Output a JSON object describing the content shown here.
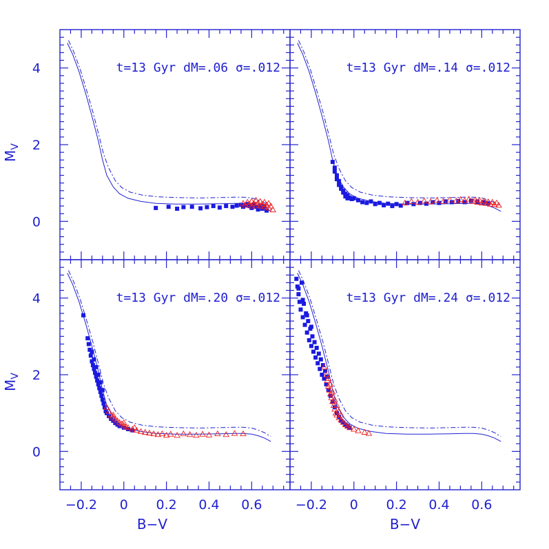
{
  "chart_data": {
    "type": "scatter",
    "layout": "2x2 panels",
    "xlabel": "B−V",
    "ylabel": "M",
    "ylabel_sub": "V",
    "xlim": [
      -0.3,
      0.78
    ],
    "ylim": [
      5.0,
      -1.0
    ],
    "y_inverted": true,
    "xticks": [
      -0.2,
      0,
      0.2,
      0.4,
      0.6
    ],
    "xtick_labels": [
      "−0.2",
      "0",
      "0.2",
      "0.4",
      "0.6"
    ],
    "yticks": [
      0,
      2,
      4
    ],
    "ytick_labels": [
      "0",
      "2",
      "4"
    ],
    "colors": {
      "axes": "#2020d0",
      "squares": "#1a1ae0",
      "triangles": "#ee2020"
    },
    "models": {
      "solid": [
        [
          -0.265,
          4.65
        ],
        [
          -0.24,
          4.35
        ],
        [
          -0.21,
          3.9
        ],
        [
          -0.18,
          3.35
        ],
        [
          -0.15,
          2.75
        ],
        [
          -0.12,
          2.1
        ],
        [
          -0.1,
          1.6
        ],
        [
          -0.08,
          1.2
        ],
        [
          -0.05,
          0.9
        ],
        [
          -0.02,
          0.72
        ],
        [
          0.02,
          0.6
        ],
        [
          0.08,
          0.52
        ],
        [
          0.15,
          0.47
        ],
        [
          0.25,
          0.45
        ],
        [
          0.35,
          0.45
        ],
        [
          0.45,
          0.46
        ],
        [
          0.52,
          0.47
        ],
        [
          0.56,
          0.47
        ],
        [
          0.6,
          0.45
        ],
        [
          0.63,
          0.41
        ],
        [
          0.66,
          0.35
        ],
        [
          0.68,
          0.29
        ],
        [
          0.69,
          0.26
        ]
      ],
      "dashdot": [
        [
          -0.26,
          4.72
        ],
        [
          -0.235,
          4.42
        ],
        [
          -0.205,
          3.97
        ],
        [
          -0.175,
          3.42
        ],
        [
          -0.145,
          2.85
        ],
        [
          -0.115,
          2.2
        ],
        [
          -0.095,
          1.75
        ],
        [
          -0.07,
          1.38
        ],
        [
          -0.04,
          1.06
        ],
        [
          -0.01,
          0.88
        ],
        [
          0.03,
          0.76
        ],
        [
          0.09,
          0.68
        ],
        [
          0.16,
          0.64
        ],
        [
          0.25,
          0.62
        ],
        [
          0.35,
          0.61
        ],
        [
          0.45,
          0.62
        ],
        [
          0.52,
          0.63
        ],
        [
          0.56,
          0.63
        ],
        [
          0.6,
          0.61
        ],
        [
          0.63,
          0.56
        ],
        [
          0.66,
          0.49
        ],
        [
          0.68,
          0.42
        ],
        [
          0.69,
          0.39
        ]
      ]
    },
    "panels": [
      {
        "annotation": "t=13 Gyr dM=.06 σ=.012",
        "squares": [
          [
            0.15,
            0.35
          ],
          [
            0.21,
            0.38
          ],
          [
            0.25,
            0.33
          ],
          [
            0.28,
            0.37
          ],
          [
            0.32,
            0.38
          ],
          [
            0.36,
            0.34
          ],
          [
            0.39,
            0.37
          ],
          [
            0.42,
            0.4
          ],
          [
            0.45,
            0.36
          ],
          [
            0.48,
            0.4
          ],
          [
            0.51,
            0.38
          ],
          [
            0.53,
            0.41
          ],
          [
            0.55,
            0.43
          ],
          [
            0.56,
            0.38
          ],
          [
            0.57,
            0.42
          ],
          [
            0.58,
            0.45
          ],
          [
            0.59,
            0.4
          ],
          [
            0.6,
            0.35
          ],
          [
            0.61,
            0.44
          ],
          [
            0.62,
            0.38
          ],
          [
            0.63,
            0.31
          ],
          [
            0.64,
            0.42
          ],
          [
            0.65,
            0.33
          ],
          [
            0.66,
            0.4
          ],
          [
            0.67,
            0.28
          ]
        ],
        "triangles": [
          [
            0.56,
            0.47
          ],
          [
            0.57,
            0.42
          ],
          [
            0.58,
            0.5
          ],
          [
            0.59,
            0.45
          ],
          [
            0.6,
            0.4
          ],
          [
            0.6,
            0.52
          ],
          [
            0.61,
            0.47
          ],
          [
            0.62,
            0.42
          ],
          [
            0.62,
            0.55
          ],
          [
            0.63,
            0.48
          ],
          [
            0.64,
            0.4
          ],
          [
            0.64,
            0.52
          ],
          [
            0.65,
            0.45
          ],
          [
            0.66,
            0.38
          ],
          [
            0.66,
            0.5
          ],
          [
            0.67,
            0.43
          ],
          [
            0.68,
            0.35
          ],
          [
            0.68,
            0.47
          ],
          [
            0.69,
            0.4
          ],
          [
            0.7,
            0.3
          ]
        ]
      },
      {
        "annotation": "t=13 Gyr dM=.14 σ=.012",
        "squares": [
          [
            -0.1,
            1.55
          ],
          [
            -0.09,
            1.4
          ],
          [
            -0.09,
            1.3
          ],
          [
            -0.08,
            1.2
          ],
          [
            -0.08,
            1.1
          ],
          [
            -0.07,
            1.05
          ],
          [
            -0.07,
            0.95
          ],
          [
            -0.06,
            0.9
          ],
          [
            -0.06,
            0.85
          ],
          [
            -0.05,
            0.8
          ],
          [
            -0.05,
            0.75
          ],
          [
            -0.04,
            0.72
          ],
          [
            -0.04,
            0.65
          ],
          [
            -0.03,
            0.68
          ],
          [
            -0.03,
            0.6
          ],
          [
            -0.02,
            0.62
          ],
          [
            -0.01,
            0.58
          ],
          [
            0.0,
            0.6
          ],
          [
            0.02,
            0.55
          ],
          [
            0.04,
            0.5
          ],
          [
            0.06,
            0.48
          ],
          [
            0.08,
            0.52
          ],
          [
            0.1,
            0.45
          ],
          [
            0.12,
            0.48
          ],
          [
            0.14,
            0.42
          ],
          [
            0.16,
            0.46
          ],
          [
            0.18,
            0.4
          ],
          [
            0.2,
            0.45
          ],
          [
            0.22,
            0.41
          ],
          [
            0.25,
            0.48
          ],
          [
            0.28,
            0.45
          ],
          [
            0.31,
            0.48
          ],
          [
            0.34,
            0.46
          ],
          [
            0.37,
            0.5
          ],
          [
            0.4,
            0.48
          ],
          [
            0.43,
            0.52
          ],
          [
            0.46,
            0.5
          ],
          [
            0.49,
            0.53
          ],
          [
            0.52,
            0.5
          ],
          [
            0.55,
            0.54
          ],
          [
            0.58,
            0.52
          ],
          [
            0.61,
            0.5
          ],
          [
            0.63,
            0.47
          ]
        ],
        "triangles": [
          [
            0.24,
            0.48
          ],
          [
            0.27,
            0.52
          ],
          [
            0.3,
            0.5
          ],
          [
            0.33,
            0.53
          ],
          [
            0.36,
            0.51
          ],
          [
            0.39,
            0.55
          ],
          [
            0.42,
            0.52
          ],
          [
            0.45,
            0.56
          ],
          [
            0.48,
            0.53
          ],
          [
            0.5,
            0.57
          ],
          [
            0.52,
            0.54
          ],
          [
            0.54,
            0.58
          ],
          [
            0.56,
            0.52
          ],
          [
            0.57,
            0.56
          ],
          [
            0.58,
            0.5
          ],
          [
            0.59,
            0.55
          ],
          [
            0.6,
            0.48
          ],
          [
            0.61,
            0.53
          ],
          [
            0.62,
            0.47
          ],
          [
            0.63,
            0.51
          ],
          [
            0.64,
            0.45
          ],
          [
            0.65,
            0.5
          ],
          [
            0.66,
            0.44
          ],
          [
            0.67,
            0.48
          ],
          [
            0.68,
            0.42
          ]
        ]
      },
      {
        "annotation": "t=13 Gyr dM=.20 σ=.012",
        "squares": [
          [
            -0.19,
            3.55
          ],
          [
            -0.17,
            2.95
          ],
          [
            -0.165,
            2.8
          ],
          [
            -0.16,
            2.65
          ],
          [
            -0.155,
            2.5
          ],
          [
            -0.15,
            2.35
          ],
          [
            -0.145,
            2.25
          ],
          [
            -0.14,
            2.15
          ],
          [
            -0.135,
            2.05
          ],
          [
            -0.13,
            1.95
          ],
          [
            -0.125,
            1.85
          ],
          [
            -0.12,
            1.75
          ],
          [
            -0.115,
            1.65
          ],
          [
            -0.11,
            1.55
          ],
          [
            -0.105,
            1.45
          ],
          [
            -0.1,
            1.35
          ],
          [
            -0.095,
            1.25
          ],
          [
            -0.09,
            1.15
          ],
          [
            -0.085,
            1.05
          ],
          [
            -0.08,
            1.0
          ],
          [
            -0.07,
            0.92
          ],
          [
            -0.06,
            0.85
          ],
          [
            -0.05,
            0.8
          ],
          [
            -0.04,
            0.74
          ],
          [
            -0.03,
            0.7
          ],
          [
            -0.02,
            0.66
          ],
          [
            0.0,
            0.62
          ],
          [
            0.02,
            0.58
          ],
          [
            0.04,
            0.55
          ],
          [
            -0.15,
            2.6
          ],
          [
            -0.14,
            2.4
          ],
          [
            -0.13,
            2.2
          ],
          [
            -0.12,
            2.0
          ],
          [
            -0.11,
            1.8
          ],
          [
            -0.1,
            1.6
          ]
        ],
        "triangles": [
          [
            -0.08,
            1.15
          ],
          [
            -0.07,
            1.05
          ],
          [
            -0.06,
            0.95
          ],
          [
            -0.05,
            0.9
          ],
          [
            -0.04,
            0.85
          ],
          [
            -0.03,
            0.8
          ],
          [
            -0.02,
            0.75
          ],
          [
            -0.01,
            0.72
          ],
          [
            0.0,
            0.68
          ],
          [
            0.01,
            0.64
          ],
          [
            0.02,
            0.62
          ],
          [
            0.04,
            0.58
          ],
          [
            0.06,
            0.55
          ],
          [
            0.08,
            0.52
          ],
          [
            0.1,
            0.5
          ],
          [
            0.12,
            0.48
          ],
          [
            0.14,
            0.46
          ],
          [
            0.16,
            0.44
          ],
          [
            0.18,
            0.46
          ],
          [
            0.2,
            0.42
          ],
          [
            0.22,
            0.45
          ],
          [
            0.25,
            0.42
          ],
          [
            0.28,
            0.46
          ],
          [
            0.31,
            0.44
          ],
          [
            0.34,
            0.42
          ],
          [
            0.37,
            0.45
          ],
          [
            0.4,
            0.43
          ],
          [
            0.44,
            0.46
          ],
          [
            0.48,
            0.44
          ],
          [
            0.52,
            0.47
          ],
          [
            0.56,
            0.46
          ],
          [
            -0.05,
            0.95
          ],
          [
            0.0,
            0.75
          ],
          [
            0.05,
            0.62
          ]
        ]
      },
      {
        "annotation": "t=13 Gyr dM=.24 σ=.012",
        "squares": [
          [
            -0.27,
            4.5
          ],
          [
            -0.265,
            4.3
          ],
          [
            -0.26,
            4.1
          ],
          [
            -0.255,
            3.9
          ],
          [
            -0.25,
            3.7
          ],
          [
            -0.245,
            4.4
          ],
          [
            -0.24,
            3.5
          ],
          [
            -0.235,
            3.85
          ],
          [
            -0.23,
            3.3
          ],
          [
            -0.225,
            3.6
          ],
          [
            -0.22,
            3.1
          ],
          [
            -0.215,
            3.4
          ],
          [
            -0.21,
            2.9
          ],
          [
            -0.205,
            3.2
          ],
          [
            -0.2,
            2.75
          ],
          [
            -0.195,
            3.0
          ],
          [
            -0.19,
            2.6
          ],
          [
            -0.185,
            2.85
          ],
          [
            -0.18,
            2.45
          ],
          [
            -0.175,
            2.7
          ],
          [
            -0.17,
            2.3
          ],
          [
            -0.165,
            2.55
          ],
          [
            -0.16,
            2.15
          ],
          [
            -0.155,
            2.4
          ],
          [
            -0.15,
            2.0
          ],
          [
            -0.145,
            2.25
          ],
          [
            -0.14,
            1.9
          ],
          [
            -0.135,
            2.1
          ],
          [
            -0.13,
            1.75
          ],
          [
            -0.125,
            1.95
          ],
          [
            -0.12,
            1.6
          ],
          [
            -0.11,
            1.45
          ],
          [
            -0.1,
            1.3
          ],
          [
            -0.09,
            1.15
          ],
          [
            -0.08,
            1.0
          ],
          [
            -0.07,
            0.9
          ],
          [
            -0.06,
            0.8
          ],
          [
            -0.05,
            0.75
          ],
          [
            -0.04,
            0.7
          ],
          [
            -0.03,
            0.66
          ],
          [
            -0.02,
            0.62
          ],
          [
            -0.26,
            4.25
          ],
          [
            -0.24,
            3.95
          ],
          [
            -0.22,
            3.55
          ],
          [
            -0.2,
            3.25
          ]
        ],
        "triangles": [
          [
            -0.14,
            2.2
          ],
          [
            -0.13,
            2.0
          ],
          [
            -0.125,
            1.85
          ],
          [
            -0.12,
            1.7
          ],
          [
            -0.115,
            1.6
          ],
          [
            -0.11,
            1.5
          ],
          [
            -0.105,
            1.4
          ],
          [
            -0.1,
            1.3
          ],
          [
            -0.095,
            1.2
          ],
          [
            -0.09,
            1.1
          ],
          [
            -0.085,
            1.0
          ],
          [
            -0.08,
            0.95
          ],
          [
            -0.07,
            0.88
          ],
          [
            -0.06,
            0.82
          ],
          [
            -0.05,
            0.76
          ],
          [
            -0.04,
            0.7
          ],
          [
            -0.03,
            0.66
          ],
          [
            -0.02,
            0.62
          ],
          [
            0.0,
            0.58
          ],
          [
            0.02,
            0.54
          ],
          [
            0.05,
            0.5
          ],
          [
            0.07,
            0.47
          ],
          [
            -0.12,
            1.9
          ],
          [
            -0.11,
            1.75
          ],
          [
            -0.1,
            1.55
          ],
          [
            -0.09,
            1.35
          ],
          [
            -0.08,
            1.2
          ],
          [
            -0.07,
            1.05
          ],
          [
            -0.06,
            0.95
          ]
        ]
      }
    ]
  }
}
